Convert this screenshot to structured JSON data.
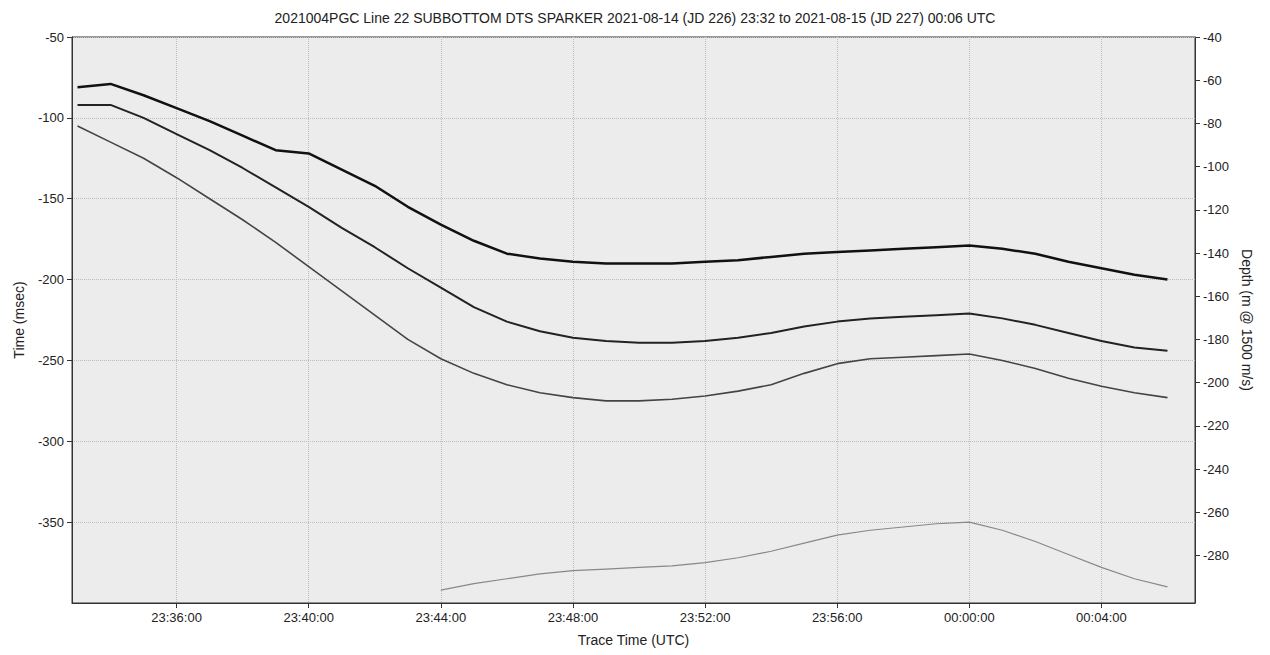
{
  "chart_data": {
    "type": "line",
    "title": "2021004PGC Line 22 SUBBOTTOM DTS SPARKER 2021-08-14 (JD 226) 23:32 to 2021-08-15 (JD 227) 00:06 UTC",
    "x_label": "Trace Time (UTC)",
    "y_label": "Time (msec)",
    "y2_label": "Depth (m @ 1500 m/s)",
    "x": [
      "2021-08-14T23:33:00Z",
      "2021-08-14T23:34:00Z",
      "2021-08-14T23:35:00Z",
      "2021-08-14T23:36:00Z",
      "2021-08-14T23:37:00Z",
      "2021-08-14T23:38:00Z",
      "2021-08-14T23:39:00Z",
      "2021-08-14T23:40:00Z",
      "2021-08-14T23:41:00Z",
      "2021-08-14T23:42:00Z",
      "2021-08-14T23:43:00Z",
      "2021-08-14T23:44:00Z",
      "2021-08-14T23:45:00Z",
      "2021-08-14T23:46:00Z",
      "2021-08-14T23:47:00Z",
      "2021-08-14T23:48:00Z",
      "2021-08-14T23:49:00Z",
      "2021-08-14T23:50:00Z",
      "2021-08-14T23:51:00Z",
      "2021-08-14T23:52:00Z",
      "2021-08-14T23:53:00Z",
      "2021-08-14T23:54:00Z",
      "2021-08-14T23:55:00Z",
      "2021-08-14T23:56:00Z",
      "2021-08-14T23:57:00Z",
      "2021-08-14T23:58:00Z",
      "2021-08-14T23:59:00Z",
      "2021-08-15T00:00:00Z",
      "2021-08-15T00:01:00Z",
      "2021-08-15T00:02:00Z",
      "2021-08-15T00:03:00Z",
      "2021-08-15T00:04:00Z",
      "2021-08-15T00:05:00Z",
      "2021-08-15T00:06:00Z"
    ],
    "series": [
      {
        "color": "#111111",
        "values": [
          -81,
          -79,
          -86,
          -94,
          -102,
          -111,
          -120,
          -122,
          -132,
          -142,
          -155,
          -166,
          -176,
          -184,
          -187,
          -189,
          -190,
          -190,
          -190,
          -189,
          -188,
          -186,
          -184,
          -183,
          -182,
          -181,
          -180,
          -179,
          -181,
          -184,
          -189,
          -193,
          -197,
          -200
        ]
      },
      {
        "color": "#222222",
        "values": [
          -92,
          -92,
          -100,
          -110,
          -120,
          -131,
          -143,
          -155,
          -168,
          -180,
          -193,
          -205,
          -217,
          -226,
          -232,
          -236,
          -238,
          -239,
          -239,
          -238,
          -236,
          -233,
          -229,
          -226,
          -224,
          -223,
          -222,
          -221,
          -224,
          -228,
          -233,
          -238,
          -242,
          -244
        ]
      },
      {
        "color": "#444444",
        "values": [
          -105,
          -115,
          -125,
          -137,
          -150,
          -163,
          -177,
          -192,
          -207,
          -222,
          -237,
          -249,
          -258,
          -265,
          -270,
          -273,
          -275,
          -275,
          -274,
          -272,
          -269,
          -265,
          -258,
          -252,
          -249,
          -248,
          -247,
          -246,
          -250,
          -255,
          -261,
          -266,
          -270,
          -273
        ]
      },
      {
        "color": "#888888",
        "values": [
          null,
          null,
          null,
          null,
          null,
          null,
          null,
          null,
          null,
          null,
          null,
          -392,
          -388,
          -385,
          -382,
          -380,
          -379,
          -378,
          -377,
          -375,
          -372,
          -368,
          -363,
          -358,
          -355,
          -353,
          -351,
          -350,
          -355,
          -362,
          -370,
          -378,
          -385,
          -390
        ]
      }
    ],
    "xlim": [
      "2021-08-14T23:32:50Z",
      "2021-08-15T00:06:50Z"
    ],
    "xticks": [
      {
        "value": "2021-08-14T23:36:00Z",
        "label": "23:36:00"
      },
      {
        "value": "2021-08-14T23:40:00Z",
        "label": "23:40:00"
      },
      {
        "value": "2021-08-14T23:44:00Z",
        "label": "23:44:00"
      },
      {
        "value": "2021-08-14T23:48:00Z",
        "label": "23:48:00"
      },
      {
        "value": "2021-08-14T23:52:00Z",
        "label": "23:52:00"
      },
      {
        "value": "2021-08-14T23:56:00Z",
        "label": "23:56:00"
      },
      {
        "value": "2021-08-15T00:00:00Z",
        "label": "00:00:00"
      },
      {
        "value": "2021-08-15T00:04:00Z",
        "label": "00:04:00"
      }
    ],
    "ylim": [
      -400,
      -50
    ],
    "yticks": [
      -350,
      -300,
      -250,
      -200,
      -150,
      -100,
      -50
    ],
    "y2lim": [
      -302,
      -40
    ],
    "y2ticks": [
      -280,
      -260,
      -240,
      -220,
      -200,
      -180,
      -160,
      -140,
      -120,
      -100,
      -80,
      -60,
      -40
    ],
    "grid": true
  }
}
